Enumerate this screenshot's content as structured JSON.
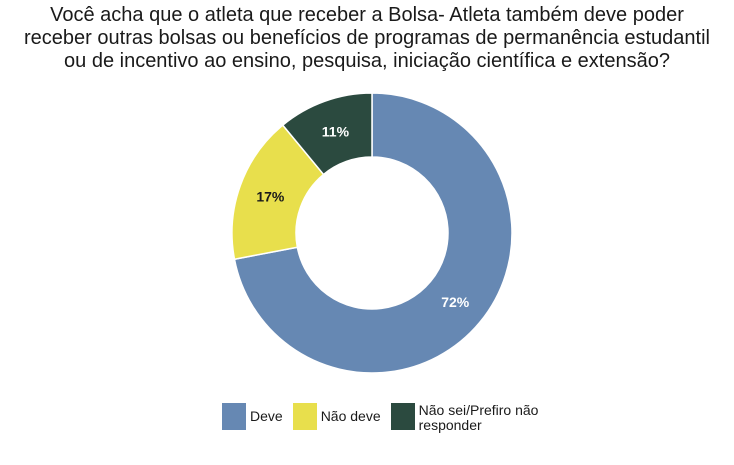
{
  "chart_data": {
    "type": "pie",
    "title_lines": [
      "Você acha que o atleta que receber a Bolsa- Atleta também deve poder",
      "receber outras bolsas ou benefícios de programas de permanência estudantil",
      "ou de incentivo ao ensino, pesquisa, iniciação científica e extensão?"
    ],
    "categories": [
      "Deve",
      "Não deve",
      "Não sei/Prefiro não responder"
    ],
    "values": [
      72,
      17,
      11
    ],
    "data_labels": [
      "72%",
      "17%",
      "11%"
    ],
    "colors": [
      "#6688b3",
      "#e8df4c",
      "#2b4a3f"
    ],
    "label_colors": [
      "#ffffff",
      "#1a1a1a",
      "#ffffff"
    ],
    "legend_placement": "bottom",
    "donut": true
  },
  "legend": {
    "items": [
      {
        "label": "Deve"
      },
      {
        "label": "Não deve"
      },
      {
        "label": "Não sei/Prefiro não responder"
      }
    ]
  }
}
